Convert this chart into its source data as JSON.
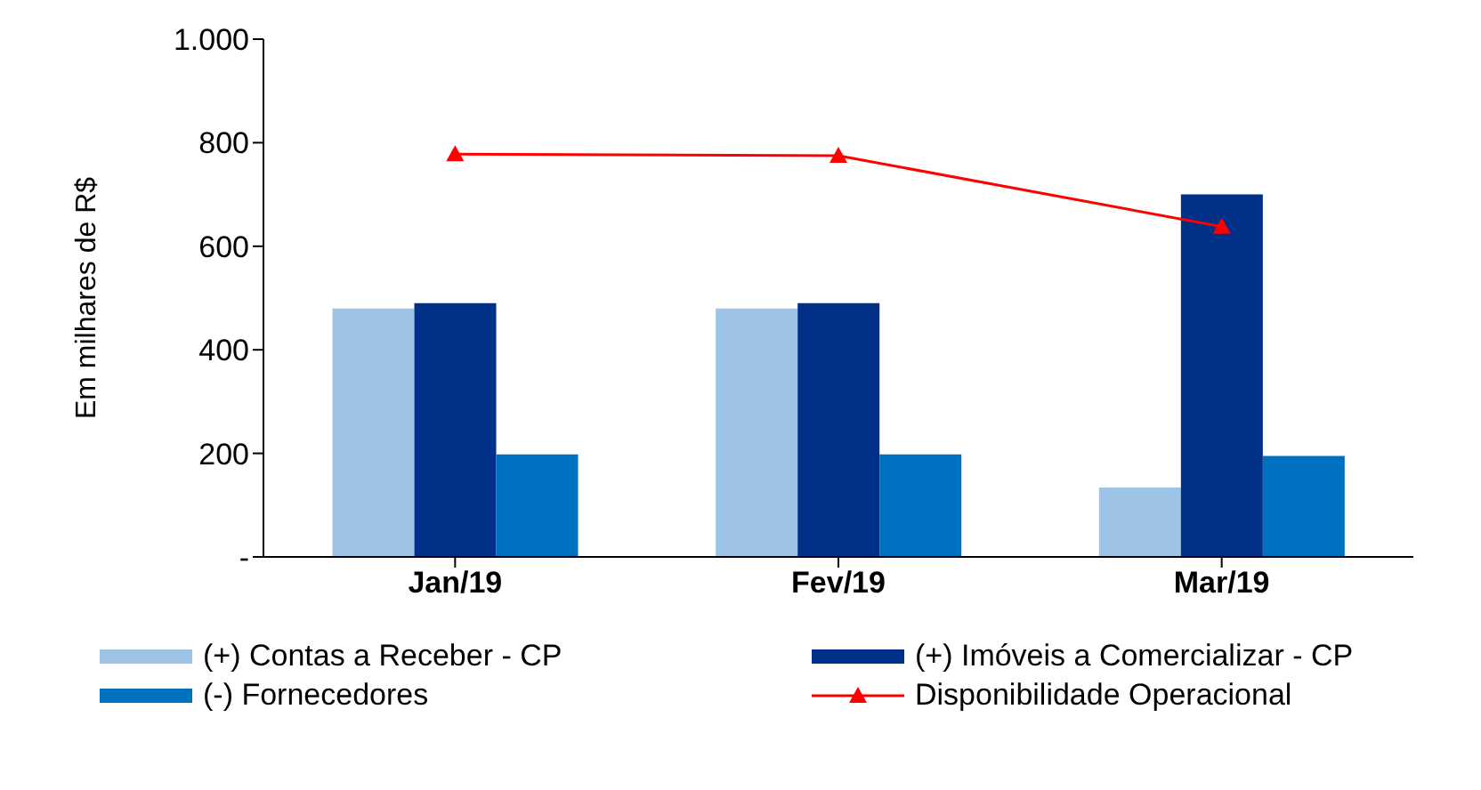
{
  "chart_data": {
    "type": "bar",
    "ylabel": "Em milhares de R$",
    "categories": [
      "Jan/19",
      "Fev/19",
      "Mar/19"
    ],
    "series": [
      {
        "name": "(+) Contas a Receber - CP",
        "color": "#9dc3e6",
        "values": [
          480,
          480,
          134
        ]
      },
      {
        "name": "(+) Imóveis a Comercializar - CP",
        "color": "#003087",
        "values": [
          490,
          490,
          700
        ]
      },
      {
        "name": "(-) Fornecedores",
        "color": "#0070c0",
        "values": [
          198,
          198,
          195
        ]
      },
      {
        "name": "Disponibilidade Operacional",
        "type": "line",
        "color": "#ff0000",
        "marker": "triangle",
        "values": [
          778,
          775,
          638
        ]
      }
    ],
    "ylim": [
      0,
      1000
    ],
    "yticks": [
      {
        "value": 0,
        "label": "-"
      },
      200,
      400,
      600,
      {
        "value": 1000,
        "label": "1.000"
      },
      800
    ],
    "legend": "bottom"
  }
}
